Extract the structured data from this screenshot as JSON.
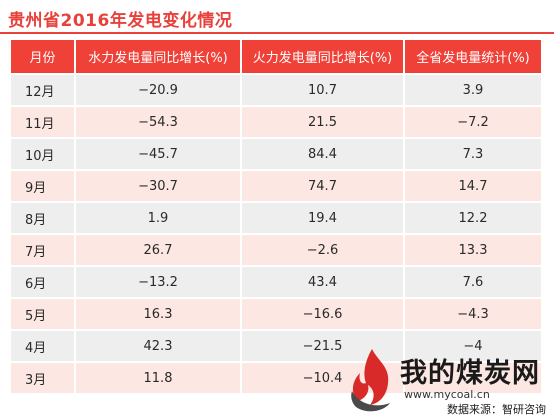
{
  "title": "贵州省2016年发电变化情况",
  "table": {
    "headers": [
      "月份",
      "水力发电量同比增长(%)",
      "火力发电量同比增长(%)",
      "全省发电量统计(%)"
    ],
    "rows": [
      {
        "month": "12月",
        "hydro": "−20.9",
        "thermal": "10.7",
        "total": "3.9"
      },
      {
        "month": "11月",
        "hydro": "−54.3",
        "thermal": "21.5",
        "total": "−7.2"
      },
      {
        "month": "10月",
        "hydro": "−45.7",
        "thermal": "84.4",
        "total": "7.3"
      },
      {
        "month": "9月",
        "hydro": "−30.7",
        "thermal": "74.7",
        "total": "14.7"
      },
      {
        "month": "8月",
        "hydro": "1.9",
        "thermal": "19.4",
        "total": "12.2"
      },
      {
        "month": "7月",
        "hydro": "26.7",
        "thermal": "−2.6",
        "total": "13.3"
      },
      {
        "month": "6月",
        "hydro": "−13.2",
        "thermal": "43.4",
        "total": "7.6"
      },
      {
        "month": "5月",
        "hydro": "16.3",
        "thermal": "−16.6",
        "total": "−4.3"
      },
      {
        "month": "4月",
        "hydro": "42.3",
        "thermal": "−21.5",
        "total": "−4"
      },
      {
        "month": "3月",
        "hydro": "11.8",
        "thermal": "−10.4",
        "total": ""
      }
    ]
  },
  "watermark": {
    "brand": "我的煤炭网",
    "url": "www.mycoal.cn"
  },
  "source": "数据来源：智研咨询",
  "colors": {
    "accent": "#e8403a",
    "header_bg": "#ef4138",
    "row_odd": "#eeeeee",
    "row_even": "#fde7e3"
  }
}
